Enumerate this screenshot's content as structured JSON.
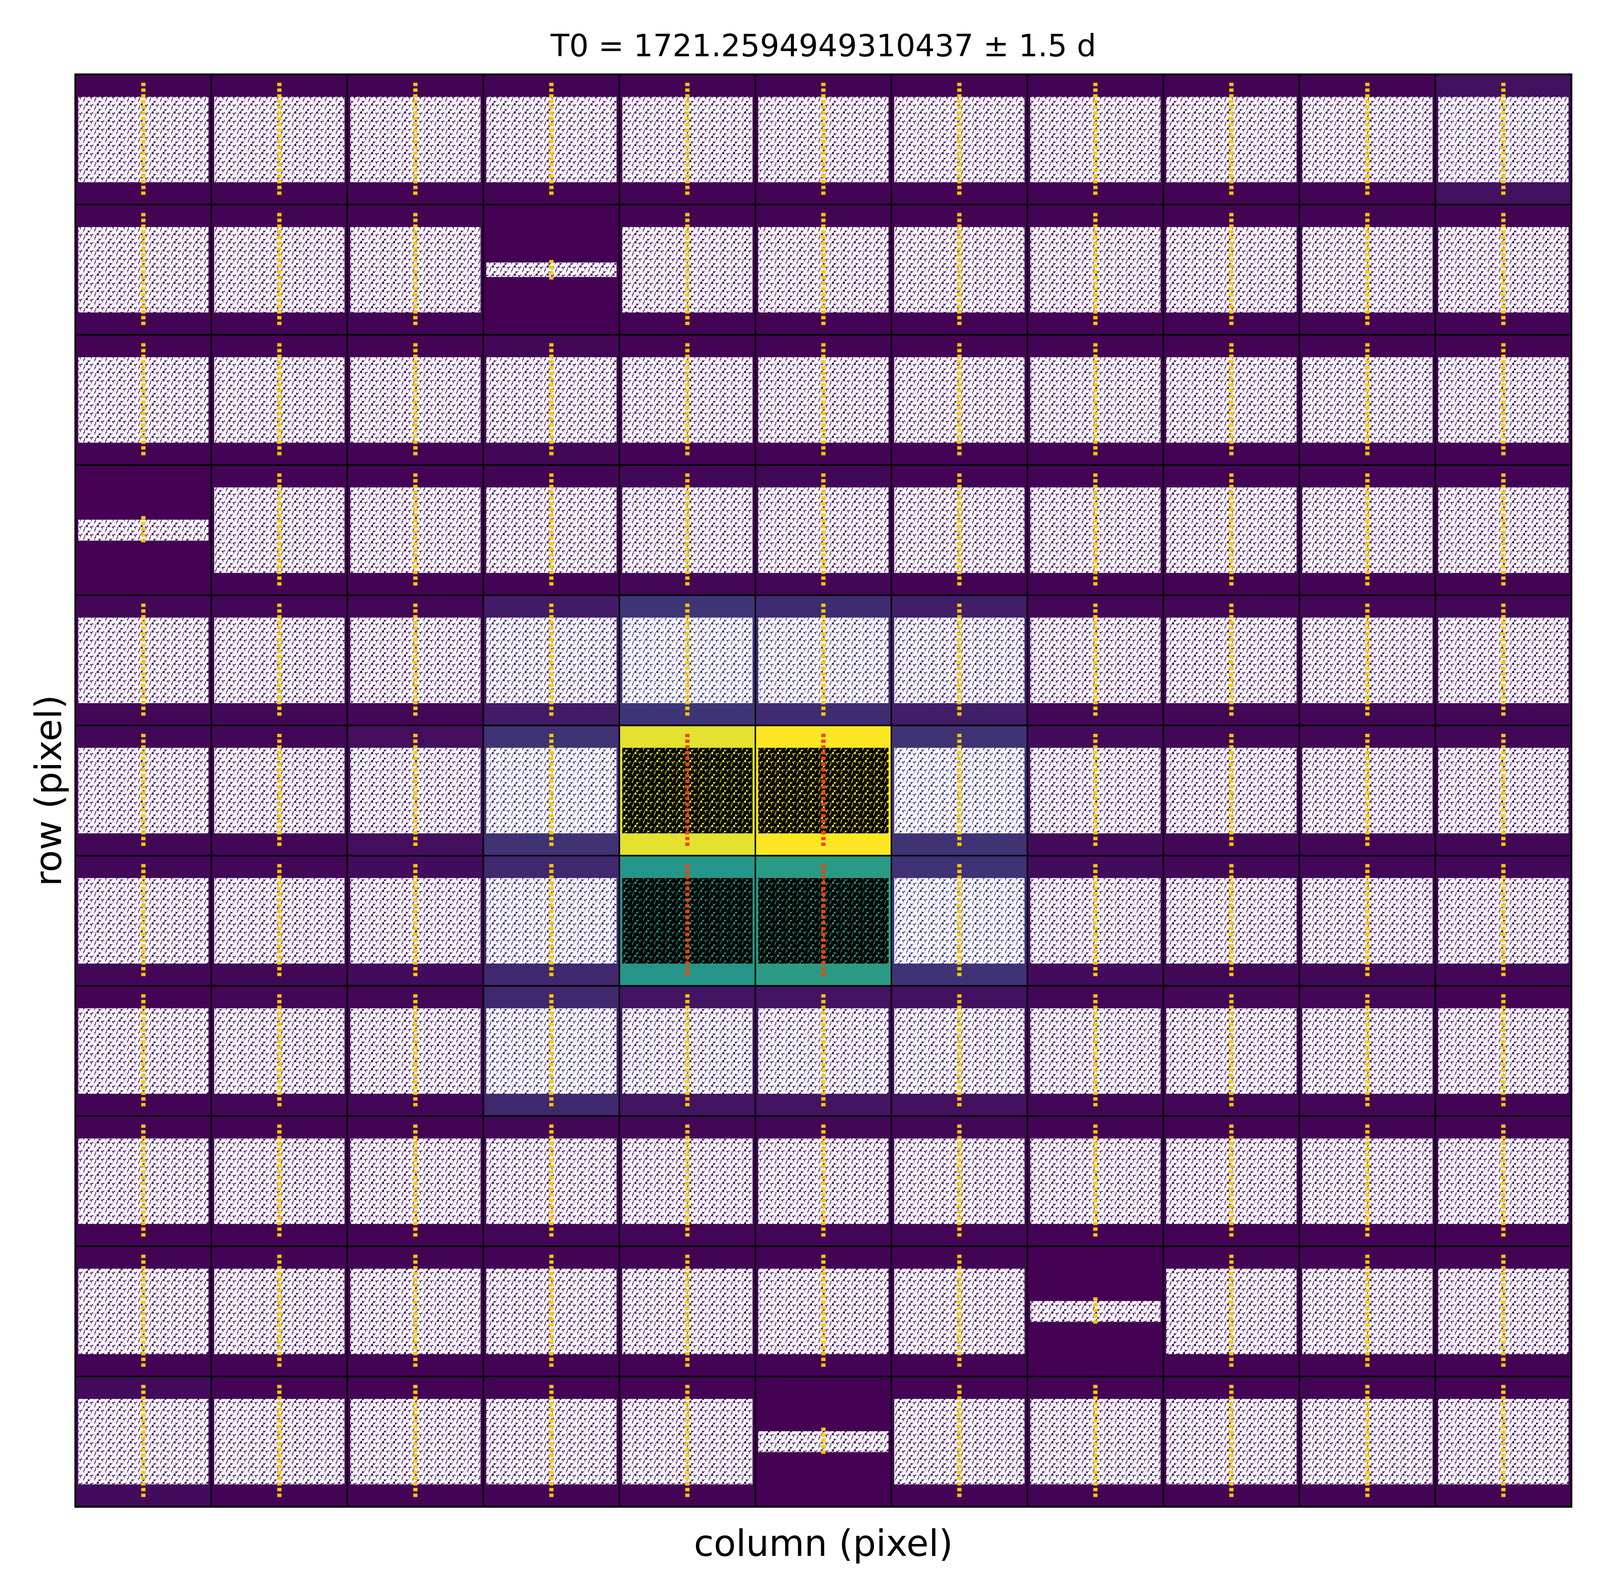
{
  "chart_data": {
    "type": "heatmap",
    "title": "T0 = 1721.2594949310437 ± 1.5 d",
    "x_label": "column (pixel)",
    "y_label": "row (pixel)",
    "tick_labels": false,
    "t0": 1721.2594949310437,
    "xlim": [
      1719.7594949310437,
      1722.7594949310437
    ],
    "cells": [
      [
        0.01,
        0.01,
        0.01,
        0.01,
        0.01,
        0.01,
        0.01,
        0.01,
        0.01,
        0.01,
        0.05
      ],
      [
        0.01,
        0.01,
        0.01,
        0.0,
        0.01,
        0.01,
        0.01,
        0.01,
        0.01,
        0.01,
        0.01
      ],
      [
        0.01,
        0.01,
        0.01,
        0.02,
        0.01,
        0.01,
        0.01,
        0.01,
        0.01,
        0.01,
        0.01
      ],
      [
        0.0,
        0.01,
        0.01,
        0.01,
        0.02,
        0.02,
        0.01,
        0.01,
        0.01,
        0.01,
        0.01
      ],
      [
        0.02,
        0.02,
        0.02,
        0.08,
        0.16,
        0.13,
        0.09,
        0.02,
        0.02,
        0.02,
        0.02
      ],
      [
        0.02,
        0.02,
        0.04,
        0.15,
        0.96,
        1.0,
        0.15,
        0.03,
        0.02,
        0.02,
        0.02
      ],
      [
        0.02,
        0.02,
        0.03,
        0.12,
        0.52,
        0.54,
        0.15,
        0.03,
        0.02,
        0.02,
        0.02
      ],
      [
        0.01,
        0.02,
        0.02,
        0.12,
        0.06,
        0.06,
        0.05,
        0.02,
        0.02,
        0.02,
        0.01
      ],
      [
        0.01,
        0.01,
        0.01,
        0.02,
        0.02,
        0.02,
        0.02,
        0.01,
        0.01,
        0.01,
        0.01
      ],
      [
        0.01,
        0.01,
        0.01,
        0.01,
        0.01,
        0.01,
        0.01,
        0.0,
        0.01,
        0.01,
        0.01
      ],
      [
        0.03,
        0.01,
        0.01,
        0.01,
        0.01,
        0.0,
        0.01,
        0.01,
        0.01,
        0.01,
        0.01
      ]
    ],
    "noise": [
      [
        1,
        1,
        1,
        1,
        1,
        1,
        1,
        1,
        1,
        1,
        1
      ],
      [
        1,
        1,
        1,
        0.12,
        1,
        1,
        1,
        1,
        1,
        1,
        1
      ],
      [
        1,
        1,
        1,
        1,
        1,
        1,
        1,
        1,
        1,
        1,
        1
      ],
      [
        0.2,
        1,
        1,
        1,
        1,
        1,
        1,
        1,
        1,
        1,
        1
      ],
      [
        1,
        1,
        1,
        1,
        1,
        1,
        1,
        1,
        1,
        1,
        1
      ],
      [
        1,
        1,
        1,
        1,
        1,
        1,
        1,
        1,
        1,
        1,
        1
      ],
      [
        1,
        1,
        1,
        1,
        1,
        1,
        1,
        1,
        1,
        1,
        1
      ],
      [
        1,
        1,
        1,
        1,
        1,
        1,
        1,
        1,
        1,
        1,
        1
      ],
      [
        1,
        1,
        1,
        1,
        1,
        1,
        1,
        1,
        1,
        1,
        1
      ],
      [
        1,
        1,
        1,
        1,
        1,
        1,
        1,
        0.2,
        1,
        1,
        1
      ],
      [
        1,
        1,
        1,
        1,
        1,
        0.2,
        1,
        1,
        1,
        1,
        1
      ]
    ],
    "aperture": [
      [
        5,
        4
      ],
      [
        5,
        5
      ],
      [
        6,
        4
      ],
      [
        6,
        5
      ]
    ]
  }
}
